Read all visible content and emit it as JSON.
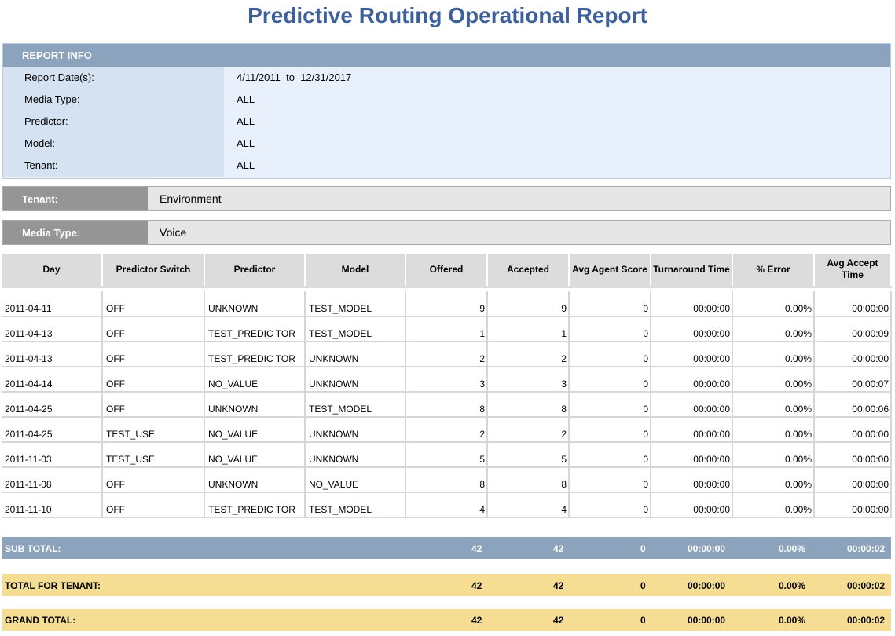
{
  "title": "Predictive Routing Operational Report",
  "report_info": {
    "header": "REPORT INFO",
    "rows": [
      {
        "label": "Report Date(s):",
        "value": "4/11/2011  to  12/31/2017"
      },
      {
        "label": "Media Type:",
        "value": "ALL"
      },
      {
        "label": "Predictor:",
        "value": "ALL"
      },
      {
        "label": "Model:",
        "value": "ALL"
      },
      {
        "label": "Tenant:",
        "value": "ALL"
      }
    ]
  },
  "tenant_bar": {
    "label": "Tenant:",
    "value": "Environment"
  },
  "media_bar": {
    "label": "Media Type:",
    "value": "Voice"
  },
  "table": {
    "columns": [
      "Day",
      "Predictor Switch",
      "Predictor",
      "Model",
      "Offered",
      "Accepted",
      "Avg Agent Score",
      "Turnaround Time",
      "% Error",
      "Avg Accept Time"
    ],
    "rows": [
      [
        "2011-04-11",
        "OFF",
        "UNKNOWN",
        "TEST_MODEL",
        "9",
        "9",
        "0",
        "00:00:00",
        "0.00%",
        "00:00:00"
      ],
      [
        "2011-04-13",
        "OFF",
        "TEST_PREDIC TOR",
        "TEST_MODEL",
        "1",
        "1",
        "0",
        "00:00:00",
        "0.00%",
        "00:00:09"
      ],
      [
        "2011-04-13",
        "OFF",
        "TEST_PREDIC TOR",
        "UNKNOWN",
        "2",
        "2",
        "0",
        "00:00:00",
        "0.00%",
        "00:00:00"
      ],
      [
        "2011-04-14",
        "OFF",
        "NO_VALUE",
        "UNKNOWN",
        "3",
        "3",
        "0",
        "00:00:00",
        "0.00%",
        "00:00:07"
      ],
      [
        "2011-04-25",
        "OFF",
        "UNKNOWN",
        "TEST_MODEL",
        "8",
        "8",
        "0",
        "00:00:00",
        "0.00%",
        "00:00:06"
      ],
      [
        "2011-04-25",
        "TEST_USE",
        "NO_VALUE",
        "UNKNOWN",
        "2",
        "2",
        "0",
        "00:00:00",
        "0.00%",
        "00:00:00"
      ],
      [
        "2011-11-03",
        "TEST_USE",
        "NO_VALUE",
        "UNKNOWN",
        "5",
        "5",
        "0",
        "00:00:00",
        "0.00%",
        "00:00:00"
      ],
      [
        "2011-11-08",
        "OFF",
        "UNKNOWN",
        "NO_VALUE",
        "8",
        "8",
        "0",
        "00:00:00",
        "0.00%",
        "00:00:00"
      ],
      [
        "2011-11-10",
        "OFF",
        "TEST_PREDIC TOR",
        "TEST_MODEL",
        "4",
        "4",
        "0",
        "00:00:00",
        "0.00%",
        "00:00:00"
      ]
    ]
  },
  "totals": {
    "sub": {
      "label": "SUB TOTAL:",
      "offered": "42",
      "accepted": "42",
      "score": "0",
      "turnaround": "00:00:00",
      "error": "0.00%",
      "accept_time": "00:00:02"
    },
    "tenant": {
      "label": "TOTAL FOR TENANT:",
      "offered": "42",
      "accepted": "42",
      "score": "0",
      "turnaround": "00:00:00",
      "error": "0.00%",
      "accept_time": "00:00:02"
    },
    "grand": {
      "label": "GRAND TOTAL:",
      "offered": "42",
      "accepted": "42",
      "score": "0",
      "turnaround": "00:00:00",
      "error": "0.00%",
      "accept_time": "00:00:02"
    }
  }
}
